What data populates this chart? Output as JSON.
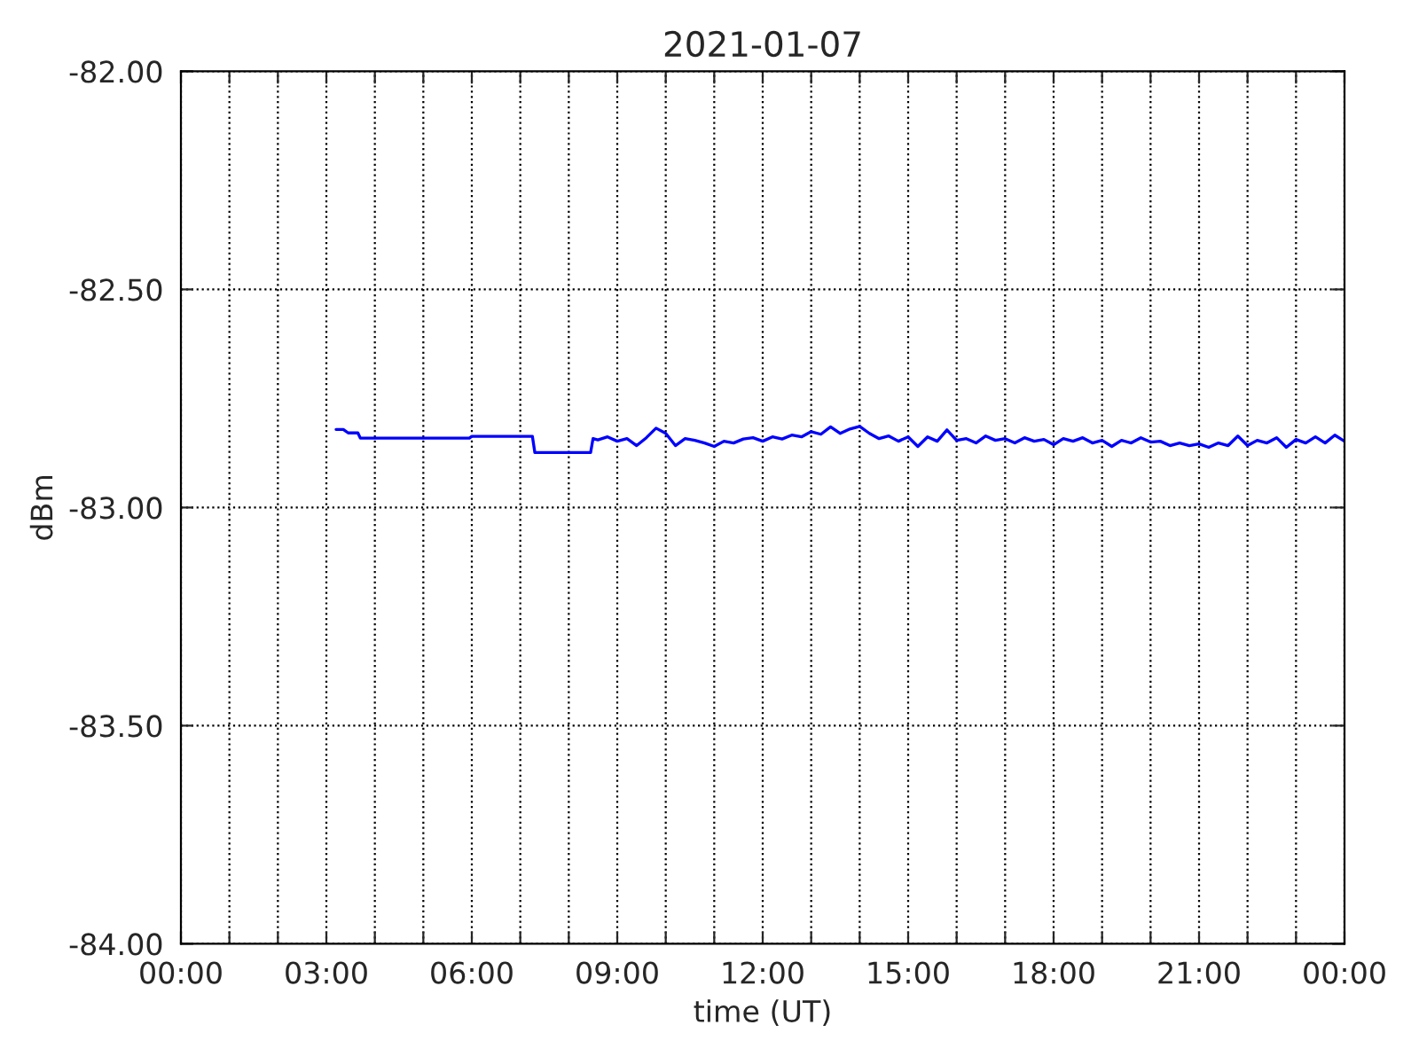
{
  "chart_data": {
    "type": "line",
    "title": "2021-01-07",
    "xlabel": "time (UT)",
    "ylabel": "dBm",
    "xlim": [
      0,
      24
    ],
    "ylim": [
      -84,
      -82
    ],
    "xticks": [
      {
        "value": 0,
        "label": "00:00"
      },
      {
        "value": 1,
        "label": null
      },
      {
        "value": 2,
        "label": null
      },
      {
        "value": 3,
        "label": "03:00"
      },
      {
        "value": 4,
        "label": null
      },
      {
        "value": 5,
        "label": null
      },
      {
        "value": 6,
        "label": "06:00"
      },
      {
        "value": 7,
        "label": null
      },
      {
        "value": 8,
        "label": null
      },
      {
        "value": 9,
        "label": "09:00"
      },
      {
        "value": 10,
        "label": null
      },
      {
        "value": 11,
        "label": null
      },
      {
        "value": 12,
        "label": "12:00"
      },
      {
        "value": 13,
        "label": null
      },
      {
        "value": 14,
        "label": null
      },
      {
        "value": 15,
        "label": "15:00"
      },
      {
        "value": 16,
        "label": null
      },
      {
        "value": 17,
        "label": null
      },
      {
        "value": 18,
        "label": "18:00"
      },
      {
        "value": 19,
        "label": null
      },
      {
        "value": 20,
        "label": null
      },
      {
        "value": 21,
        "label": "21:00"
      },
      {
        "value": 22,
        "label": null
      },
      {
        "value": 23,
        "label": null
      },
      {
        "value": 24,
        "label": "00:00"
      }
    ],
    "yticks": [
      {
        "value": -84,
        "label": "-84.00"
      },
      {
        "value": -83.5,
        "label": "-83.50"
      },
      {
        "value": -83,
        "label": "-83.00"
      },
      {
        "value": -82.5,
        "label": "-82.50"
      },
      {
        "value": -82,
        "label": "-82.00"
      }
    ],
    "grid": true,
    "marker": "none",
    "line_style": "solid",
    "series": [
      {
        "color": "#0000ff",
        "x": [
          3.2,
          3.35,
          3.45,
          3.65,
          3.7,
          5.95,
          6.0,
          7.25,
          7.3,
          8.45,
          8.5,
          8.6,
          8.8,
          9.0,
          9.2,
          9.4,
          9.6,
          9.8,
          10.0,
          10.2,
          10.4,
          10.6,
          10.8,
          11.0,
          11.2,
          11.4,
          11.6,
          11.8,
          12.0,
          12.2,
          12.4,
          12.6,
          12.8,
          13.0,
          13.2,
          13.4,
          13.6,
          13.8,
          14.0,
          14.2,
          14.4,
          14.6,
          14.8,
          15.0,
          15.2,
          15.4,
          15.6,
          15.8,
          16.0,
          16.2,
          16.4,
          16.6,
          16.8,
          17.0,
          17.2,
          17.4,
          17.6,
          17.8,
          18.0,
          18.2,
          18.4,
          18.6,
          18.8,
          19.0,
          19.2,
          19.4,
          19.6,
          19.8,
          20.0,
          20.2,
          20.4,
          20.6,
          20.8,
          21.0,
          21.2,
          21.4,
          21.6,
          21.8,
          22.0,
          22.2,
          22.4,
          22.6,
          22.8,
          23.0,
          23.2,
          23.4,
          23.6,
          23.8,
          24.0
        ],
        "values": [
          -82.821,
          -82.821,
          -82.829,
          -82.829,
          -82.841,
          -82.841,
          -82.837,
          -82.837,
          -82.874,
          -82.874,
          -82.842,
          -82.845,
          -82.838,
          -82.848,
          -82.842,
          -82.858,
          -82.84,
          -82.818,
          -82.83,
          -82.858,
          -82.842,
          -82.846,
          -82.852,
          -82.86,
          -82.848,
          -82.852,
          -82.843,
          -82.84,
          -82.848,
          -82.838,
          -82.843,
          -82.834,
          -82.838,
          -82.826,
          -82.832,
          -82.815,
          -82.83,
          -82.82,
          -82.814,
          -82.83,
          -82.842,
          -82.836,
          -82.848,
          -82.838,
          -82.86,
          -82.838,
          -82.848,
          -82.822,
          -82.846,
          -82.842,
          -82.852,
          -82.836,
          -82.846,
          -82.842,
          -82.852,
          -82.84,
          -82.848,
          -82.844,
          -82.856,
          -82.842,
          -82.848,
          -82.84,
          -82.852,
          -82.846,
          -82.86,
          -82.846,
          -82.852,
          -82.84,
          -82.85,
          -82.848,
          -82.858,
          -82.852,
          -82.858,
          -82.854,
          -82.862,
          -82.852,
          -82.858,
          -82.836,
          -82.858,
          -82.846,
          -82.852,
          -82.84,
          -82.862,
          -82.844,
          -82.852,
          -82.838,
          -82.852,
          -82.834,
          -82.848
        ]
      }
    ]
  }
}
